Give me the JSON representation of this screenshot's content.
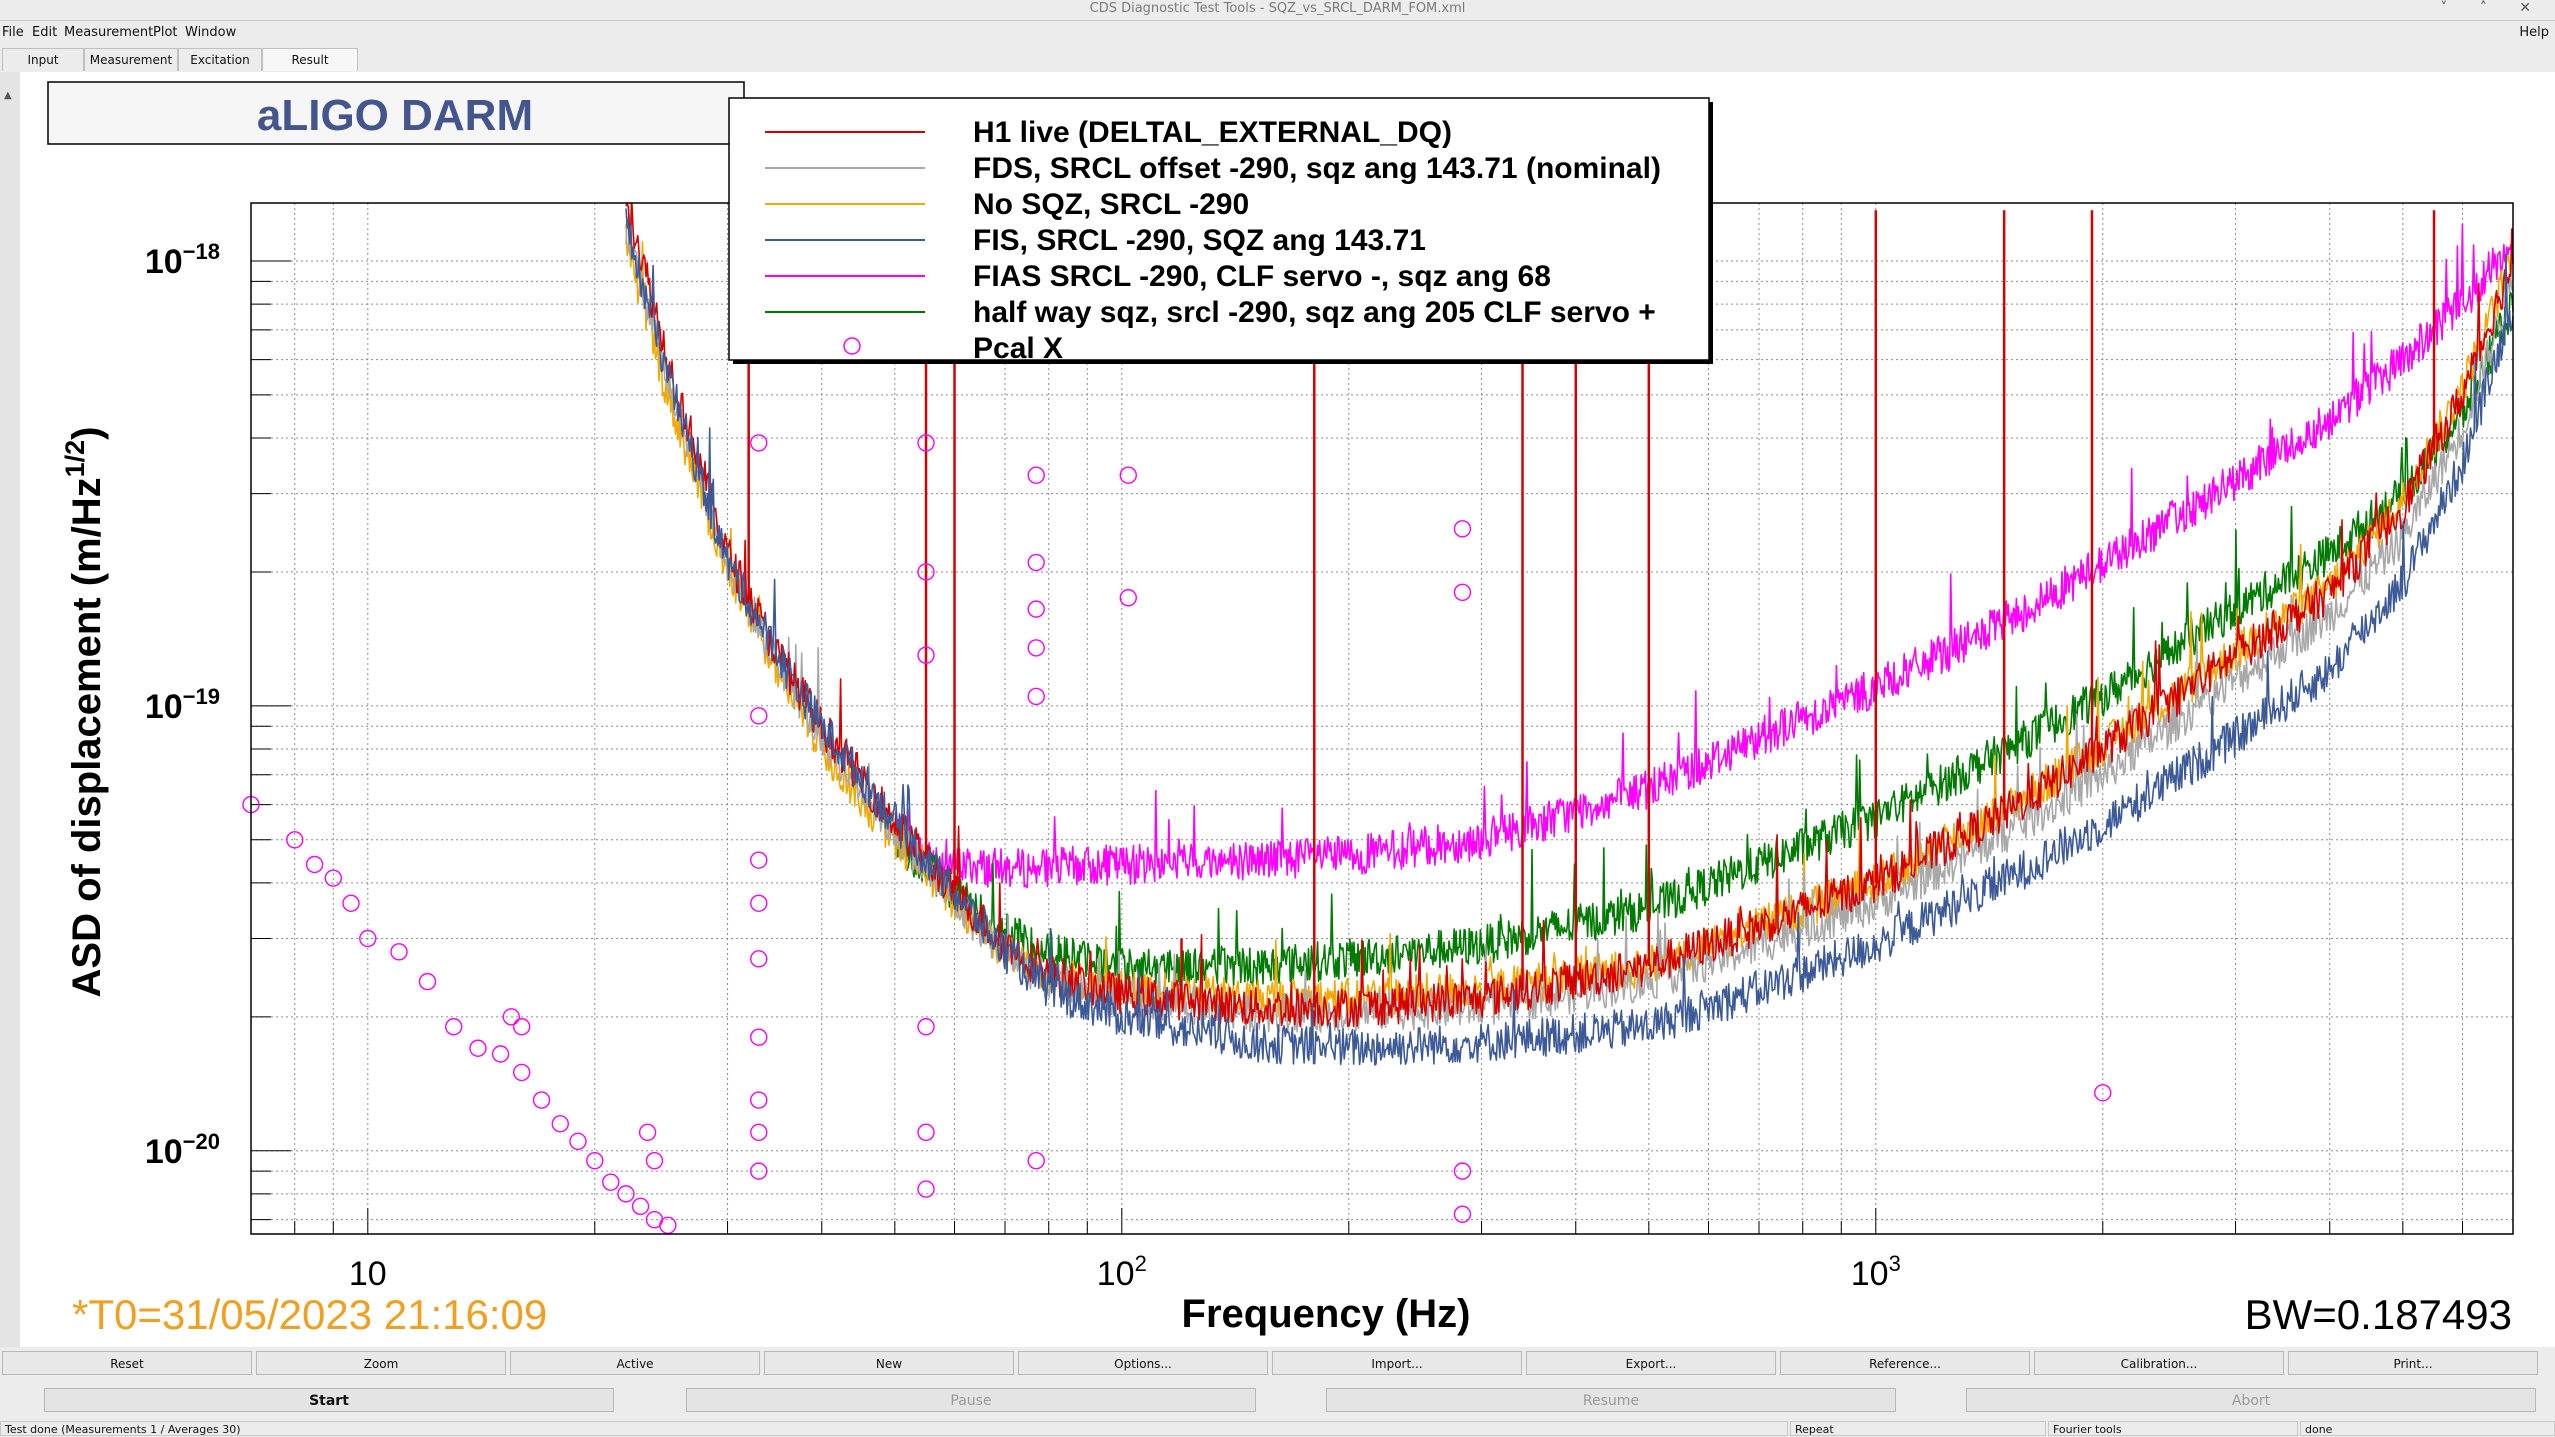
{
  "window": {
    "title": "CDS Diagnostic Test Tools - SQZ_vs_SRCL_DARM_FOM.xml",
    "controls": [
      "˅",
      "˄",
      "✕"
    ]
  },
  "menu": {
    "items": [
      "File",
      "Edit",
      "Measurement",
      "Plot",
      "Window"
    ],
    "help": "Help"
  },
  "tabs": [
    "Input",
    "Measurement",
    "Excitation",
    "Result"
  ],
  "active_tab": "Result",
  "plot": {
    "title_box": "aLIGO DARM",
    "t0_text": "*T0=31/05/2023 21:16:09",
    "bw_text": "BW=0.187493",
    "colors": {
      "red": "#d40000",
      "gray": "#a8a8a8",
      "orange": "#f2a800",
      "blue": "#3d5a98",
      "magenta": "#ff00ff",
      "green": "#007a00",
      "title": "#44558e",
      "t0": "#f0a020"
    }
  },
  "chart_data": {
    "type": "line",
    "xlabel": "Frequency (Hz)",
    "ylabel": "ASD of displacement (m/Hz^1/2)",
    "xscale": "log",
    "yscale": "log",
    "xlim": [
      7,
      7000
    ],
    "ylim": [
      6.5e-21,
      1.35e-18
    ],
    "xticks": [
      {
        "v": 10,
        "label": "10"
      },
      {
        "v": 100,
        "label": "10",
        "sup": "2"
      },
      {
        "v": 1000,
        "label": "10",
        "sup": "3"
      }
    ],
    "yticks": [
      {
        "v": 1e-18,
        "label": "10",
        "sup": "−18"
      },
      {
        "v": 1e-19,
        "label": "10",
        "sup": "−19"
      },
      {
        "v": 1e-20,
        "label": "10",
        "sup": "−20"
      }
    ],
    "grid": true,
    "legend_position": "top-center",
    "series": [
      {
        "name": "H1 live (DELTAL_EXTERNAL_DQ)",
        "color": "#d40000",
        "type": "line",
        "points": [
          [
            22,
            1.4e-18
          ],
          [
            25,
            6e-19
          ],
          [
            30,
            2.2e-19
          ],
          [
            35,
            1.3e-19
          ],
          [
            40,
            9e-20
          ],
          [
            50,
            5.5e-20
          ],
          [
            60,
            3.8e-20
          ],
          [
            70,
            2.9e-20
          ],
          [
            80,
            2.5e-20
          ],
          [
            100,
            2.25e-20
          ],
          [
            150,
            2.1e-20
          ],
          [
            200,
            2.1e-20
          ],
          [
            300,
            2.2e-20
          ],
          [
            500,
            2.6e-20
          ],
          [
            700,
            3.2e-20
          ],
          [
            1000,
            4e-20
          ],
          [
            1500,
            5.8e-20
          ],
          [
            2000,
            8e-20
          ],
          [
            3000,
            1.3e-19
          ],
          [
            4000,
            1.8e-19
          ],
          [
            5000,
            2.8e-19
          ],
          [
            6000,
            5e-19
          ],
          [
            7000,
            1e-18
          ]
        ],
        "lines": [
          {
            "x": 32,
            "y": 1.3e-18
          },
          {
            "x": 55,
            "y": 1.3e-18
          },
          {
            "x": 60,
            "y": 1.3e-18
          },
          {
            "x": 120,
            "y": 3e-20
          },
          {
            "x": 180,
            "y": 1.3e-18
          },
          {
            "x": 340,
            "y": 1.3e-18
          },
          {
            "x": 400,
            "y": 1.3e-18
          },
          {
            "x": 500,
            "y": 1.3e-18
          },
          {
            "x": 1000,
            "y": 1.3e-18
          },
          {
            "x": 1480,
            "y": 1.3e-18
          },
          {
            "x": 1935,
            "y": 1.3e-18
          },
          {
            "x": 5500,
            "y": 1.3e-18
          }
        ]
      },
      {
        "name": "FDS, SRCL offset -290, sqz ang 143.71 (nominal)",
        "color": "#a8a8a8",
        "type": "line",
        "points": [
          [
            22,
            1.2e-18
          ],
          [
            25,
            5.5e-19
          ],
          [
            30,
            2.1e-19
          ],
          [
            35,
            1.25e-19
          ],
          [
            40,
            8.5e-20
          ],
          [
            50,
            5.2e-20
          ],
          [
            60,
            3.6e-20
          ],
          [
            70,
            2.8e-20
          ],
          [
            80,
            2.4e-20
          ],
          [
            100,
            2.2e-20
          ],
          [
            150,
            2.05e-20
          ],
          [
            200,
            2.05e-20
          ],
          [
            300,
            2.1e-20
          ],
          [
            500,
            2.4e-20
          ],
          [
            700,
            2.9e-20
          ],
          [
            1000,
            3.6e-20
          ],
          [
            1500,
            5.2e-20
          ],
          [
            2000,
            7e-20
          ],
          [
            3000,
            1.15e-19
          ],
          [
            4000,
            1.6e-19
          ],
          [
            5000,
            2.4e-19
          ],
          [
            6000,
            4.2e-19
          ],
          [
            7000,
            9e-19
          ]
        ]
      },
      {
        "name": "No SQZ, SRCL -290",
        "color": "#f2a800",
        "type": "line",
        "points": [
          [
            22,
            1.1e-18
          ],
          [
            25,
            5e-19
          ],
          [
            30,
            2e-19
          ],
          [
            35,
            1.2e-19
          ],
          [
            40,
            8e-20
          ],
          [
            50,
            5e-20
          ],
          [
            60,
            3.6e-20
          ],
          [
            70,
            2.8e-20
          ],
          [
            80,
            2.5e-20
          ],
          [
            100,
            2.3e-20
          ],
          [
            150,
            2.2e-20
          ],
          [
            200,
            2.2e-20
          ],
          [
            300,
            2.3e-20
          ],
          [
            500,
            2.6e-20
          ],
          [
            700,
            3.2e-20
          ],
          [
            1000,
            4e-20
          ],
          [
            1500,
            5.9e-20
          ],
          [
            2000,
            8.1e-20
          ],
          [
            3000,
            1.32e-19
          ],
          [
            4000,
            1.85e-19
          ],
          [
            5000,
            2.9e-19
          ],
          [
            6000,
            5.2e-19
          ],
          [
            7000,
            1e-18
          ]
        ]
      },
      {
        "name": "FIS, SRCL -290, SQZ ang 143.71",
        "color": "#3d5a98",
        "type": "line",
        "points": [
          [
            22,
            1.2e-18
          ],
          [
            25,
            5.5e-19
          ],
          [
            30,
            2.1e-19
          ],
          [
            35,
            1.3e-19
          ],
          [
            40,
            9e-20
          ],
          [
            50,
            5.5e-20
          ],
          [
            60,
            3.8e-20
          ],
          [
            70,
            2.8e-20
          ],
          [
            80,
            2.3e-20
          ],
          [
            100,
            2e-20
          ],
          [
            150,
            1.75e-20
          ],
          [
            200,
            1.7e-20
          ],
          [
            300,
            1.75e-20
          ],
          [
            500,
            1.9e-20
          ],
          [
            700,
            2.3e-20
          ],
          [
            1000,
            2.9e-20
          ],
          [
            1500,
            4.1e-20
          ],
          [
            2000,
            5.4e-20
          ],
          [
            3000,
            8.5e-20
          ],
          [
            4000,
            1.2e-19
          ],
          [
            5000,
            1.9e-19
          ],
          [
            6000,
            3.5e-19
          ],
          [
            7000,
            8e-19
          ]
        ]
      },
      {
        "name": "FIAS SRCL -290, CLF servo -, sqz ang 68",
        "color": "#ff00ff",
        "type": "line",
        "points": [
          [
            50,
            5.2e-20
          ],
          [
            55,
            4.6e-20
          ],
          [
            60,
            4.4e-20
          ],
          [
            70,
            4.3e-20
          ],
          [
            100,
            4.4e-20
          ],
          [
            200,
            4.6e-20
          ],
          [
            300,
            5e-20
          ],
          [
            500,
            6.5e-20
          ],
          [
            700,
            8.5e-20
          ],
          [
            1000,
            1.1e-19
          ],
          [
            1500,
            1.55e-19
          ],
          [
            2000,
            2.1e-19
          ],
          [
            3000,
            3.2e-19
          ],
          [
            4000,
            4.4e-19
          ],
          [
            5000,
            6e-19
          ],
          [
            6000,
            8e-19
          ],
          [
            7000,
            1.1e-18
          ]
        ]
      },
      {
        "name": "half way sqz, srcl -290, sqz ang 205 CLF servo +",
        "color": "#007a00",
        "type": "line",
        "points": [
          [
            50,
            5e-20
          ],
          [
            60,
            3.8e-20
          ],
          [
            70,
            3.1e-20
          ],
          [
            80,
            2.8e-20
          ],
          [
            100,
            2.6e-20
          ],
          [
            150,
            2.6e-20
          ],
          [
            200,
            2.7e-20
          ],
          [
            300,
            2.9e-20
          ],
          [
            500,
            3.5e-20
          ],
          [
            700,
            4.4e-20
          ],
          [
            1000,
            5.6e-20
          ],
          [
            1500,
            8e-20
          ],
          [
            2000,
            1.05e-19
          ],
          [
            3000,
            1.65e-19
          ],
          [
            4000,
            2.2e-19
          ],
          [
            5000,
            3e-19
          ],
          [
            6000,
            4.5e-19
          ],
          [
            7000,
            8e-19
          ]
        ]
      },
      {
        "name": "Pcal X",
        "color": "#ff00ff",
        "type": "markers",
        "points": [
          [
            7,
            6e-20
          ],
          [
            8,
            5e-20
          ],
          [
            8.5,
            4.4e-20
          ],
          [
            9,
            4.1e-20
          ],
          [
            9.5,
            3.6e-20
          ],
          [
            10,
            3e-20
          ],
          [
            11,
            2.8e-20
          ],
          [
            12,
            2.4e-20
          ],
          [
            13,
            1.9e-20
          ],
          [
            14,
            1.7e-20
          ],
          [
            15,
            1.65e-20
          ],
          [
            16,
            1.5e-20
          ],
          [
            17,
            1.3e-20
          ],
          [
            18,
            1.15e-20
          ],
          [
            19,
            1.05e-20
          ],
          [
            20,
            9.5e-21
          ],
          [
            21,
            8.5e-21
          ],
          [
            22,
            8e-21
          ],
          [
            23,
            7.5e-21
          ],
          [
            24,
            7e-21
          ],
          [
            25,
            6.8e-21
          ],
          [
            15.5,
            2e-20
          ],
          [
            16,
            1.9e-20
          ],
          [
            23.5,
            1.1e-20
          ],
          [
            24,
            9.5e-21
          ],
          [
            33,
            3.9e-19
          ],
          [
            33,
            9.5e-20
          ],
          [
            33,
            4.5e-20
          ],
          [
            33,
            3.6e-20
          ],
          [
            33,
            2.7e-20
          ],
          [
            33,
            1.8e-20
          ],
          [
            33,
            1.3e-20
          ],
          [
            33,
            1.1e-20
          ],
          [
            33,
            9e-21
          ],
          [
            55,
            3.9e-19
          ],
          [
            55,
            2e-19
          ],
          [
            55,
            1.3e-19
          ],
          [
            55,
            1.9e-20
          ],
          [
            55,
            1.1e-20
          ],
          [
            55,
            8.2e-21
          ],
          [
            77,
            3.3e-19
          ],
          [
            77,
            2.1e-19
          ],
          [
            77,
            1.65e-19
          ],
          [
            77,
            1.35e-19
          ],
          [
            77,
            1.05e-19
          ],
          [
            77,
            9.5e-21
          ],
          [
            102,
            3.3e-19
          ],
          [
            102,
            1.75e-19
          ],
          [
            283,
            2.5e-19
          ],
          [
            283,
            1.8e-19
          ],
          [
            283,
            9e-21
          ],
          [
            283,
            7.2e-21
          ],
          [
            2000,
            1.35e-20
          ]
        ]
      }
    ]
  },
  "buttons_row1": [
    "Reset",
    "Zoom",
    "Active",
    "New",
    "Options...",
    "Import...",
    "Export...",
    "Reference...",
    "Calibration...",
    "Print..."
  ],
  "buttons_row2": [
    {
      "label": "Start",
      "enabled": true
    },
    {
      "label": "Pause",
      "enabled": false
    },
    {
      "label": "Resume",
      "enabled": false
    },
    {
      "label": "Abort",
      "enabled": false
    }
  ],
  "status": {
    "left": "Test done (Measurements 1 / Averages 30)",
    "repeat": "Repeat",
    "tool": "Fourier tools",
    "state": "done"
  }
}
